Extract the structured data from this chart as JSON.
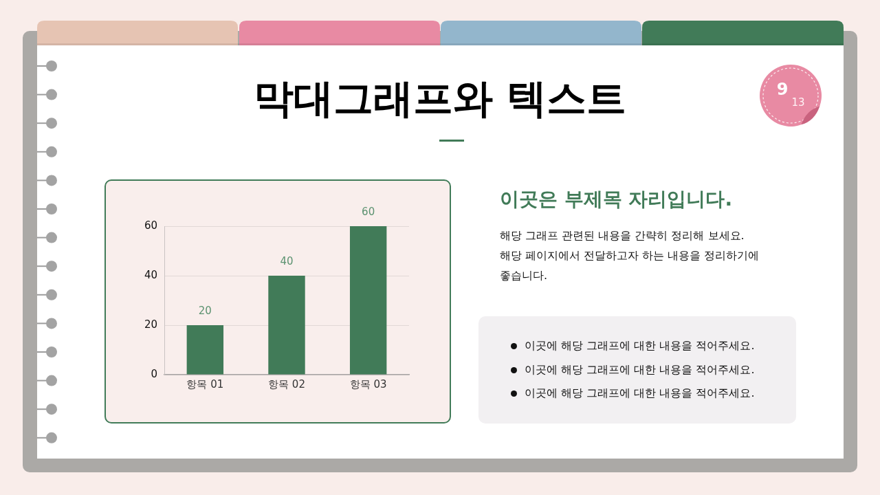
{
  "chart_data": {
    "type": "bar",
    "title": "막대그래프와 텍스트",
    "subtitle": "이곳은 부제목 자리입니다.",
    "categories": [
      "항목 01",
      "항목 02",
      "항목 03"
    ],
    "values": [
      20,
      40,
      60
    ],
    "color": "#417b58",
    "ylim": [
      0,
      60
    ],
    "yticks": [
      0,
      20,
      40,
      60
    ],
    "grid": "y",
    "data_labels": true,
    "annotations": [
      "해당 그래프 관련된 내용을 간략히 정리해 보세요.",
      "해당 페이지에서 전달하고자 하는 내용을 정리하기에 좋습니다.",
      "이곳에 해당 그래프에 대한 내용을 적어주세요.",
      "이곳에 해당 그래프에 대한 내용을 적어주세요.",
      "이곳에 해당 그래프에 대한 내용을 적어주세요.",
      "9",
      "13"
    ]
  }
}
